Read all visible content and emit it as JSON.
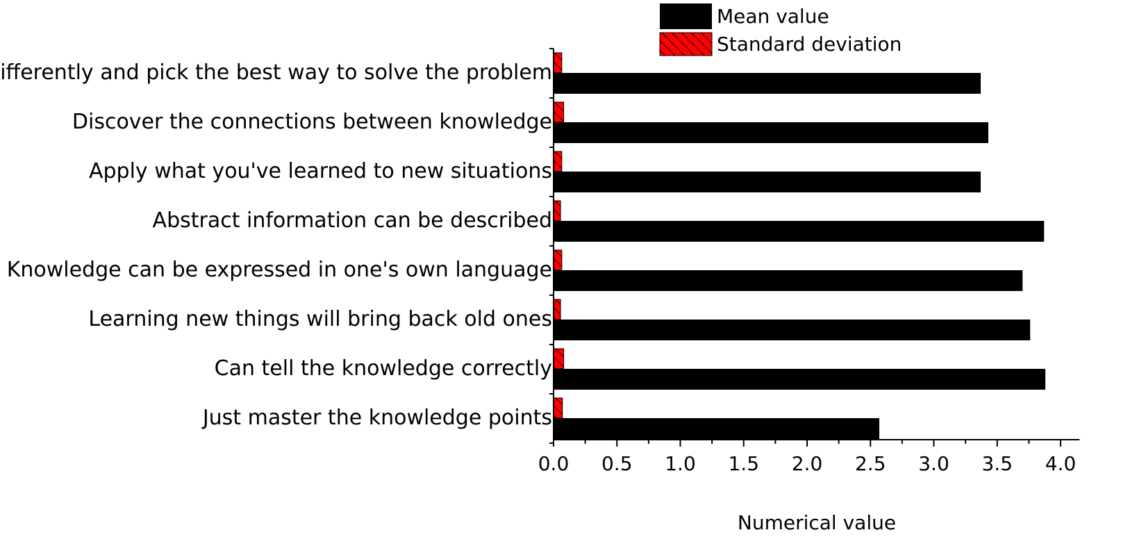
{
  "chart_data": {
    "type": "bar",
    "orientation": "horizontal",
    "categories": [
      "Think differently and pick the best way to solve the problem",
      "Discover the connections between knowledge",
      "Apply what you've learned to new situations",
      "Abstract information can be described",
      "Knowledge can be expressed in one's own language",
      "Learning new things will bring back old ones",
      "Can tell the knowledge correctly",
      "Just master the knowledge points"
    ],
    "series": [
      {
        "name": "Mean value",
        "color": "#000000",
        "pattern": "solid",
        "values": [
          3.37,
          3.43,
          3.37,
          3.87,
          3.7,
          3.76,
          3.88,
          2.57
        ]
      },
      {
        "name": "Standard deviation",
        "color": "#ff0000",
        "pattern": "hatched",
        "values": [
          0.065,
          0.08,
          0.065,
          0.055,
          0.065,
          0.055,
          0.08,
          0.07
        ]
      }
    ],
    "xlabel": "Numerical value",
    "ylabel": "",
    "xlim": [
      0,
      4.15
    ],
    "xticks": [
      "0.0",
      "0.5",
      "1.0",
      "1.5",
      "2.0",
      "2.5",
      "3.0",
      "3.5",
      "4.0"
    ],
    "legend_position": "top-right",
    "grid": false
  }
}
